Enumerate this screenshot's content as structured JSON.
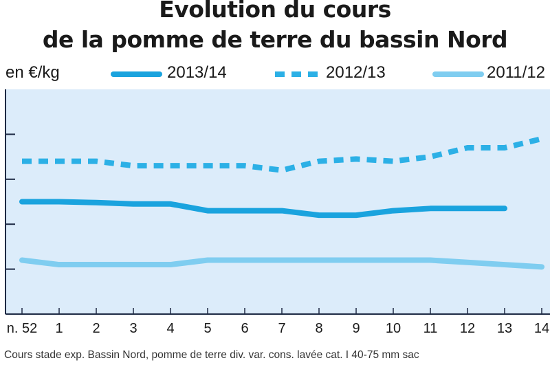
{
  "title_line1": "Evolution du cours",
  "title_line2": "de la pomme de terre du bassin Nord",
  "footnote": "Cours stade exp. Bassin Nord, pomme de terre div. var. cons. lavée cat. I 40-75 mm sac",
  "colors": {
    "plot_bg": "#dcecfa",
    "grid_tick": "#1e2a44",
    "series_2013_14": "#1aa3de",
    "series_2012_13": "#2cb0e6",
    "series_2011_12": "#7fcdf0"
  },
  "chart_data": {
    "type": "line",
    "title": "Evolution du cours de la pomme de terre du bassin Nord",
    "ylabel": "en €/kg",
    "xlabel": "",
    "x_tick_labels": [
      "n. 52",
      "1",
      "2",
      "3",
      "4",
      "5",
      "6",
      "7",
      "8",
      "9",
      "10",
      "11",
      "12",
      "13",
      "14"
    ],
    "ylim": [
      0,
      0.5
    ],
    "y_ticks": [
      0.1,
      0.2,
      0.3,
      0.4
    ],
    "legend_position": "top",
    "series": [
      {
        "name": "2013/14",
        "style": "solid",
        "values": [
          0.25,
          0.25,
          0.248,
          0.245,
          0.245,
          0.23,
          0.23,
          0.23,
          0.22,
          0.22,
          0.23,
          0.235,
          0.235,
          0.235
        ]
      },
      {
        "name": "2012/13",
        "style": "dashed",
        "values": [
          0.34,
          0.34,
          0.34,
          0.33,
          0.33,
          0.33,
          0.33,
          0.32,
          0.34,
          0.345,
          0.34,
          0.35,
          0.37,
          0.37,
          0.39
        ]
      },
      {
        "name": "2011/12",
        "style": "solid-light",
        "values": [
          0.12,
          0.11,
          0.11,
          0.11,
          0.11,
          0.12,
          0.12,
          0.12,
          0.12,
          0.12,
          0.12,
          0.12,
          0.115,
          0.11,
          0.105
        ]
      }
    ]
  }
}
